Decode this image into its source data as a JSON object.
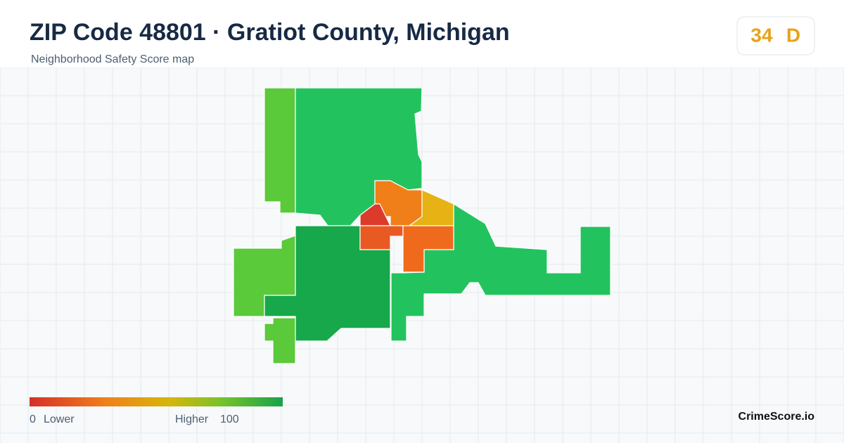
{
  "header": {
    "title": "ZIP Code 48801 · Gratiot County, Michigan",
    "subtitle": "Neighborhood Safety Score map"
  },
  "score": {
    "value": 34,
    "grade": "D"
  },
  "legend": {
    "min": 0,
    "min_label": "Lower",
    "max_label": "Higher",
    "max": 100
  },
  "brand": "CrimeScore.io"
}
